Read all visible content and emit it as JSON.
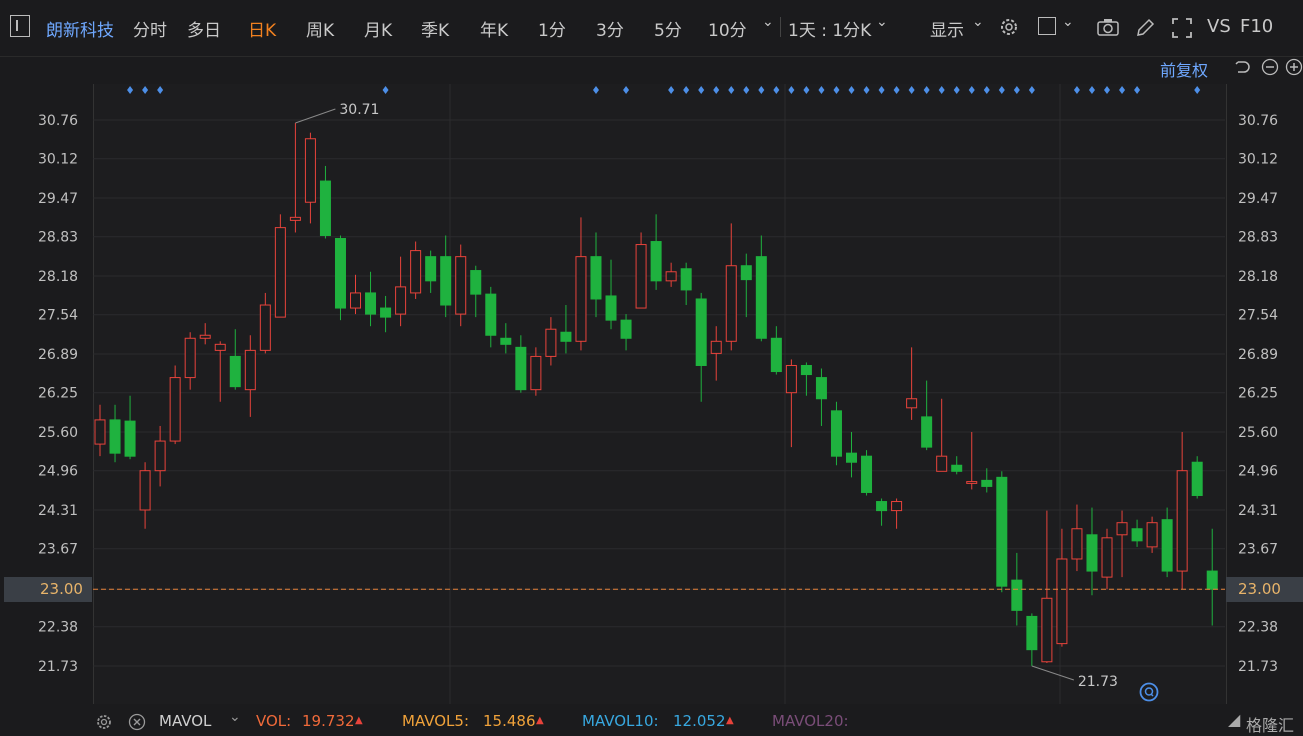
{
  "toolbar": {
    "stock_name": "朗新科技",
    "periods": [
      "分时",
      "多日",
      "日K",
      "周K",
      "月K",
      "季K",
      "年K",
      "1分",
      "3分",
      "5分",
      "10分"
    ],
    "active_period": "日K",
    "dropdown_label": "1天 : 1分K",
    "display_label": "显示",
    "vs_label": "VS",
    "f10_label": "F10"
  },
  "chart": {
    "adjust_label": "前复权",
    "price_labels": [
      "30.76",
      "30.12",
      "29.47",
      "28.83",
      "28.18",
      "27.54",
      "26.89",
      "26.25",
      "25.60",
      "24.96",
      "24.31",
      "23.67",
      "23.00",
      "22.38",
      "21.73"
    ],
    "current_price": "23.00",
    "high_marker": "30.71",
    "low_marker": "21.73",
    "colors": {
      "up": "#e8433b",
      "down": "#1fb23f",
      "current_line": "#e8833a",
      "marker": "#4d8fe8"
    }
  },
  "chart_data": {
    "type": "candlestick",
    "ylim": [
      21.3,
      31.3
    ],
    "candles": [
      {
        "o": 25.4,
        "c": 25.8,
        "h": 26.05,
        "l": 25.2
      },
      {
        "o": 25.8,
        "c": 25.25,
        "h": 26.05,
        "l": 25.1
      },
      {
        "o": 25.78,
        "c": 25.2,
        "h": 26.2,
        "l": 25.15
      },
      {
        "o": 24.31,
        "c": 24.96,
        "h": 25.1,
        "l": 24.0
      },
      {
        "o": 24.96,
        "c": 25.45,
        "h": 25.7,
        "l": 24.7
      },
      {
        "o": 25.45,
        "c": 26.5,
        "h": 26.7,
        "l": 25.4
      },
      {
        "o": 26.5,
        "c": 27.15,
        "h": 27.25,
        "l": 26.3
      },
      {
        "o": 27.15,
        "c": 27.2,
        "h": 27.4,
        "l": 27.05
      },
      {
        "o": 26.95,
        "c": 27.05,
        "h": 27.1,
        "l": 26.1
      },
      {
        "o": 26.85,
        "c": 26.35,
        "h": 27.3,
        "l": 26.3
      },
      {
        "o": 26.3,
        "c": 26.95,
        "h": 27.2,
        "l": 25.85
      },
      {
        "o": 26.95,
        "c": 27.7,
        "h": 27.9,
        "l": 26.9
      },
      {
        "o": 27.5,
        "c": 28.98,
        "h": 29.2,
        "l": 27.5
      },
      {
        "o": 29.1,
        "c": 29.15,
        "h": 30.71,
        "l": 28.9
      },
      {
        "o": 29.4,
        "c": 30.45,
        "h": 30.55,
        "l": 29.05
      },
      {
        "o": 29.75,
        "c": 28.85,
        "h": 30.0,
        "l": 28.8
      },
      {
        "o": 28.8,
        "c": 27.65,
        "h": 28.85,
        "l": 27.45
      },
      {
        "o": 27.65,
        "c": 27.9,
        "h": 28.2,
        "l": 27.55
      },
      {
        "o": 27.9,
        "c": 27.55,
        "h": 28.25,
        "l": 27.35
      },
      {
        "o": 27.65,
        "c": 27.5,
        "h": 27.85,
        "l": 27.25
      },
      {
        "o": 27.55,
        "c": 28.0,
        "h": 28.5,
        "l": 27.35
      },
      {
        "o": 27.9,
        "c": 28.6,
        "h": 28.75,
        "l": 27.8
      },
      {
        "o": 28.5,
        "c": 28.1,
        "h": 28.6,
        "l": 27.9
      },
      {
        "o": 28.5,
        "c": 27.7,
        "h": 28.85,
        "l": 27.5
      },
      {
        "o": 27.55,
        "c": 28.5,
        "h": 28.7,
        "l": 27.35
      },
      {
        "o": 28.27,
        "c": 27.88,
        "h": 28.35,
        "l": 27.5
      },
      {
        "o": 27.88,
        "c": 27.2,
        "h": 28.0,
        "l": 27.0
      },
      {
        "o": 27.15,
        "c": 27.05,
        "h": 27.4,
        "l": 26.9
      },
      {
        "o": 27.0,
        "c": 26.3,
        "h": 27.2,
        "l": 26.25
      },
      {
        "o": 26.3,
        "c": 26.85,
        "h": 27.0,
        "l": 26.2
      },
      {
        "o": 26.85,
        "c": 27.3,
        "h": 27.5,
        "l": 26.7
      },
      {
        "o": 27.25,
        "c": 27.1,
        "h": 27.7,
        "l": 26.9
      },
      {
        "o": 27.1,
        "c": 28.5,
        "h": 29.15,
        "l": 26.95
      },
      {
        "o": 28.5,
        "c": 27.8,
        "h": 28.9,
        "l": 27.5
      },
      {
        "o": 27.85,
        "c": 27.45,
        "h": 28.45,
        "l": 27.3
      },
      {
        "o": 27.45,
        "c": 27.15,
        "h": 27.55,
        "l": 26.95
      },
      {
        "o": 27.65,
        "c": 28.7,
        "h": 28.9,
        "l": 27.65
      },
      {
        "o": 28.75,
        "c": 28.1,
        "h": 29.2,
        "l": 27.95
      },
      {
        "o": 28.1,
        "c": 28.25,
        "h": 28.4,
        "l": 28.0
      },
      {
        "o": 28.3,
        "c": 27.95,
        "h": 28.4,
        "l": 27.7
      },
      {
        "o": 27.8,
        "c": 26.7,
        "h": 27.9,
        "l": 26.1
      },
      {
        "o": 26.9,
        "c": 27.1,
        "h": 27.35,
        "l": 26.45
      },
      {
        "o": 27.1,
        "c": 28.35,
        "h": 29.05,
        "l": 26.95
      },
      {
        "o": 28.35,
        "c": 28.12,
        "h": 28.55,
        "l": 27.5
      },
      {
        "o": 28.5,
        "c": 27.15,
        "h": 28.85,
        "l": 27.1
      },
      {
        "o": 27.15,
        "c": 26.6,
        "h": 27.35,
        "l": 26.55
      },
      {
        "o": 26.25,
        "c": 26.7,
        "h": 26.8,
        "l": 25.35
      },
      {
        "o": 26.7,
        "c": 26.55,
        "h": 26.75,
        "l": 26.2
      },
      {
        "o": 26.5,
        "c": 26.15,
        "h": 26.65,
        "l": 25.7
      },
      {
        "o": 25.95,
        "c": 25.2,
        "h": 26.1,
        "l": 25.05
      },
      {
        "o": 25.25,
        "c": 25.1,
        "h": 25.6,
        "l": 24.85
      },
      {
        "o": 25.2,
        "c": 24.6,
        "h": 25.3,
        "l": 24.55
      },
      {
        "o": 24.45,
        "c": 24.3,
        "h": 24.5,
        "l": 24.05
      },
      {
        "o": 24.3,
        "c": 24.45,
        "h": 24.5,
        "l": 24.0
      },
      {
        "o": 26.0,
        "c": 26.15,
        "h": 27.0,
        "l": 25.8
      },
      {
        "o": 25.85,
        "c": 25.35,
        "h": 26.45,
        "l": 25.3
      },
      {
        "o": 24.95,
        "c": 25.2,
        "h": 26.15,
        "l": 24.95
      },
      {
        "o": 25.05,
        "c": 24.95,
        "h": 25.2,
        "l": 24.9
      },
      {
        "o": 24.75,
        "c": 24.78,
        "h": 25.6,
        "l": 24.65
      },
      {
        "o": 24.8,
        "c": 24.7,
        "h": 25.0,
        "l": 24.6
      },
      {
        "o": 24.85,
        "c": 23.05,
        "h": 24.95,
        "l": 22.95
      },
      {
        "o": 23.15,
        "c": 22.65,
        "h": 23.6,
        "l": 22.4
      },
      {
        "o": 22.55,
        "c": 22.0,
        "h": 22.6,
        "l": 21.73
      },
      {
        "o": 21.8,
        "c": 22.85,
        "h": 24.3,
        "l": 21.78
      },
      {
        "o": 22.1,
        "c": 23.5,
        "h": 24.0,
        "l": 22.05
      },
      {
        "o": 23.5,
        "c": 24.0,
        "h": 24.4,
        "l": 23.3
      },
      {
        "o": 23.9,
        "c": 23.3,
        "h": 24.35,
        "l": 22.9
      },
      {
        "o": 23.2,
        "c": 23.85,
        "h": 24.0,
        "l": 23.0
      },
      {
        "o": 23.9,
        "c": 24.1,
        "h": 24.3,
        "l": 23.2
      },
      {
        "o": 24.0,
        "c": 23.8,
        "h": 24.15,
        "l": 23.7
      },
      {
        "o": 23.7,
        "c": 24.1,
        "h": 24.2,
        "l": 23.6
      },
      {
        "o": 24.15,
        "c": 23.3,
        "h": 24.35,
        "l": 23.2
      },
      {
        "o": 23.3,
        "c": 24.96,
        "h": 25.6,
        "l": 23.0
      },
      {
        "o": 25.1,
        "c": 24.55,
        "h": 25.2,
        "l": 24.5
      },
      {
        "o": 23.3,
        "c": 23.0,
        "h": 24.0,
        "l": 22.4
      }
    ],
    "markers_at_index": [
      2,
      3,
      4,
      19,
      33,
      35,
      38,
      39,
      40,
      41,
      42,
      43,
      44,
      45,
      46,
      47,
      48,
      49,
      50,
      51,
      52,
      53,
      54,
      55,
      56,
      57,
      58,
      59,
      60,
      61,
      62,
      65,
      66,
      67,
      68,
      69,
      73
    ]
  },
  "bottom": {
    "indicator": "MAVOL",
    "vol_label": "VOL:",
    "vol_value": "19.732",
    "mavol5_label": "MAVOL5:",
    "mavol5_value": "15.486",
    "mavol10_label": "MAVOL10:",
    "mavol10_value": "12.052",
    "mavol20_label": "MAVOL20:",
    "watermark": "格隆汇"
  }
}
